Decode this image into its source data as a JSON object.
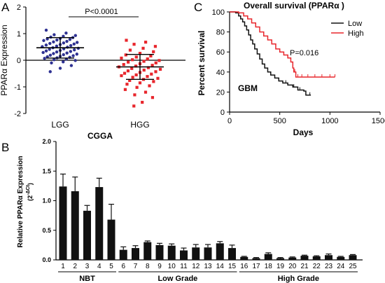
{
  "panels": {
    "a": {
      "letter": "A"
    },
    "b": {
      "letter": "B"
    },
    "c": {
      "letter": "C"
    }
  },
  "chart_data": [
    {
      "panel": "A",
      "type": "scatter",
      "ylabel": "PPARα  Expression",
      "xlabel": "CGGA",
      "ylim": [
        -2,
        2
      ],
      "yticks": [
        "2",
        "1",
        "0",
        "-1",
        "-2"
      ],
      "annotation": "P<0.0001",
      "groups": [
        {
          "name": "LGG",
          "color": "#2e3192",
          "mean": 0.47,
          "sd_upper": 0.85,
          "sd_lower": 0.08,
          "values": [
            1.13,
            1.02,
            0.96,
            0.93,
            0.9,
            0.87,
            0.85,
            0.82,
            0.8,
            0.78,
            0.76,
            0.74,
            0.71,
            0.69,
            0.67,
            0.65,
            0.63,
            0.61,
            0.59,
            0.57,
            0.55,
            0.53,
            0.51,
            0.49,
            0.47,
            0.45,
            0.43,
            0.41,
            0.39,
            0.37,
            0.35,
            0.33,
            0.31,
            0.29,
            0.27,
            0.25,
            0.23,
            0.21,
            0.19,
            0.17,
            0.15,
            0.13,
            0.11,
            0.09,
            0.07,
            0.04,
            0.02,
            -0.01,
            -0.06,
            -0.1,
            -0.2,
            -0.3,
            -0.43
          ]
        },
        {
          "name": "HGG",
          "color": "#e8262c",
          "mean": -0.25,
          "sd_upper": 0.22,
          "sd_lower": -0.72,
          "values": [
            0.75,
            0.68,
            0.6,
            0.52,
            0.45,
            0.38,
            0.32,
            0.26,
            0.2,
            0.16,
            0.12,
            0.08,
            0.05,
            0.02,
            -0.01,
            -0.04,
            -0.07,
            -0.1,
            -0.13,
            -0.16,
            -0.19,
            -0.22,
            -0.25,
            -0.28,
            -0.31,
            -0.34,
            -0.37,
            -0.4,
            -0.43,
            -0.46,
            -0.49,
            -0.52,
            -0.55,
            -0.58,
            -0.61,
            -0.64,
            -0.68,
            -0.72,
            -0.76,
            -0.8,
            -0.85,
            -0.9,
            -0.96,
            -1.02,
            -1.1,
            -1.2,
            -1.3,
            -1.4,
            -1.58,
            -1.72
          ]
        }
      ]
    },
    {
      "panel": "B",
      "type": "bar",
      "ylabel": "Relative PPARα  Expression",
      "ylabel2": "(2",
      "ylabel2_sup": "-ΔCt",
      "ylabel2_end": ")",
      "ylim": [
        0,
        2.0
      ],
      "yticks": [
        "2.0",
        "1.5",
        "1.0",
        "0.5",
        "0.0"
      ],
      "categories": [
        "1",
        "2",
        "3",
        "4",
        "5",
        "6",
        "7",
        "8",
        "9",
        "10",
        "11",
        "12",
        "13",
        "14",
        "15",
        "16",
        "17",
        "18",
        "19",
        "20",
        "21",
        "22",
        "23",
        "24",
        "25"
      ],
      "values": [
        1.24,
        1.16,
        0.83,
        1.23,
        0.68,
        0.17,
        0.2,
        0.3,
        0.25,
        0.24,
        0.16,
        0.21,
        0.21,
        0.28,
        0.2,
        0.05,
        0.03,
        0.1,
        0.03,
        0.04,
        0.07,
        0.06,
        0.08,
        0.05,
        0.08
      ],
      "errors": [
        0.21,
        0.24,
        0.09,
        0.15,
        0.26,
        0.05,
        0.04,
        0.02,
        0.03,
        0.03,
        0.04,
        0.05,
        0.05,
        0.03,
        0.05,
        0.01,
        0.01,
        0.02,
        0.01,
        0.01,
        0.01,
        0.01,
        0.02,
        0.01,
        0.01
      ],
      "bar_color": "#111111",
      "group_labels": [
        {
          "label": "NBT",
          "from": 1,
          "to": 5
        },
        {
          "label": "Low Grade",
          "from": 6,
          "to": 15
        },
        {
          "label": "High Grade",
          "from": 16,
          "to": 25
        }
      ]
    },
    {
      "panel": "C",
      "type": "line",
      "title": "Overall survival (PPARα )",
      "xlabel": "Days",
      "ylabel": "Percent survival",
      "xlim": [
        0,
        1500
      ],
      "ylim": [
        0,
        100
      ],
      "xticks": [
        "0",
        "500",
        "1000",
        "1500"
      ],
      "yticks": [
        "100",
        "80",
        "60",
        "40",
        "20",
        "0"
      ],
      "annotation": "P=0.016",
      "corner_label": "GBM",
      "series": [
        {
          "name": "Low",
          "color": "#111111",
          "points": [
            [
              0,
              100
            ],
            [
              60,
              99
            ],
            [
              90,
              96
            ],
            [
              110,
              93
            ],
            [
              130,
              90
            ],
            [
              150,
              86
            ],
            [
              170,
              82
            ],
            [
              190,
              77
            ],
            [
              210,
              72
            ],
            [
              230,
              68
            ],
            [
              250,
              63
            ],
            [
              275,
              58
            ],
            [
              300,
              53
            ],
            [
              325,
              48
            ],
            [
              350,
              44
            ],
            [
              380,
              40
            ],
            [
              410,
              37
            ],
            [
              450,
              34
            ],
            [
              490,
              31
            ],
            [
              530,
              29
            ],
            [
              580,
              27
            ],
            [
              630,
              25
            ],
            [
              680,
              22
            ],
            [
              740,
              21
            ],
            [
              760,
              17
            ],
            [
              810,
              17
            ]
          ],
          "end_x": 810
        },
        {
          "name": "High",
          "color": "#e8262c",
          "points": [
            [
              0,
              100
            ],
            [
              90,
              99
            ],
            [
              140,
              96
            ],
            [
              180,
              93
            ],
            [
              220,
              89
            ],
            [
              260,
              85
            ],
            [
              300,
              80
            ],
            [
              340,
              76
            ],
            [
              380,
              72
            ],
            [
              420,
              68
            ],
            [
              460,
              63
            ],
            [
              500,
              60
            ],
            [
              540,
              57
            ],
            [
              580,
              54
            ],
            [
              610,
              50
            ],
            [
              630,
              44
            ],
            [
              640,
              40
            ],
            [
              660,
              35
            ],
            [
              700,
              35
            ],
            [
              1050,
              35
            ]
          ],
          "end_x": 1050
        }
      ]
    }
  ]
}
